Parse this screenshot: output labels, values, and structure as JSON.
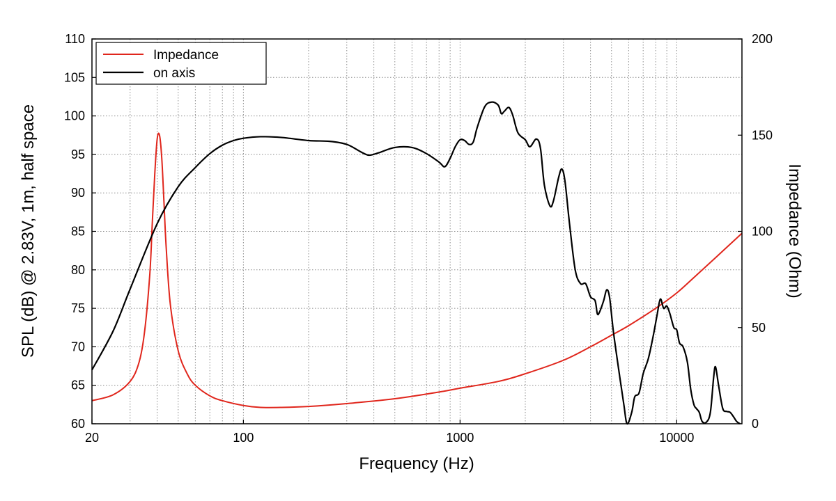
{
  "chart_data": {
    "type": "line",
    "xscale": "log",
    "xlim": [
      20,
      20000
    ],
    "xlabel": "Frequency (Hz)",
    "x_ticks": [
      20,
      100,
      1000,
      10000
    ],
    "x_tick_labels": [
      "20",
      "100",
      "1000",
      "10000"
    ],
    "ylabel_left": "SPL (dB) @ 2.83V, 1m, half space",
    "ylim_left": [
      60,
      110
    ],
    "y_ticks_left": [
      60,
      65,
      70,
      75,
      80,
      85,
      90,
      95,
      100,
      105,
      110
    ],
    "ylabel_right": "Impedance (Ohm)",
    "ylim_right": [
      0,
      200
    ],
    "y_ticks_right": [
      0,
      50,
      100,
      150,
      200
    ],
    "grid": true,
    "legend_position": "top-left",
    "colors": {
      "impedance": "#e0261c",
      "on_axis": "#000000"
    },
    "series": [
      {
        "name": "Impedance",
        "axis": "right",
        "color": "#e0261c",
        "points": [
          [
            20,
            12
          ],
          [
            25,
            15
          ],
          [
            30,
            22
          ],
          [
            33,
            32
          ],
          [
            35,
            48
          ],
          [
            37,
            78
          ],
          [
            38,
            105
          ],
          [
            39,
            130
          ],
          [
            40,
            148
          ],
          [
            41,
            150
          ],
          [
            42,
            138
          ],
          [
            43,
            115
          ],
          [
            44,
            92
          ],
          [
            46,
            62
          ],
          [
            50,
            38
          ],
          [
            55,
            26
          ],
          [
            60,
            20
          ],
          [
            70,
            14.5
          ],
          [
            80,
            12
          ],
          [
            100,
            9.5
          ],
          [
            120,
            8.5
          ],
          [
            150,
            8.5
          ],
          [
            200,
            9
          ],
          [
            300,
            10.5
          ],
          [
            500,
            13
          ],
          [
            800,
            16.5
          ],
          [
            1000,
            18.5
          ],
          [
            1500,
            22
          ],
          [
            2000,
            26
          ],
          [
            3000,
            33
          ],
          [
            4000,
            40
          ],
          [
            5000,
            46
          ],
          [
            6000,
            51
          ],
          [
            8000,
            60
          ],
          [
            10000,
            68
          ],
          [
            12000,
            76
          ],
          [
            15000,
            86
          ],
          [
            20000,
            99
          ]
        ]
      },
      {
        "name": "on axis",
        "axis": "left",
        "color": "#000000",
        "points": [
          [
            20,
            67
          ],
          [
            25,
            72
          ],
          [
            30,
            77.5
          ],
          [
            40,
            86
          ],
          [
            50,
            90.8
          ],
          [
            60,
            93.3
          ],
          [
            70,
            95.1
          ],
          [
            80,
            96.2
          ],
          [
            90,
            96.8
          ],
          [
            100,
            97.1
          ],
          [
            120,
            97.3
          ],
          [
            150,
            97.2
          ],
          [
            200,
            96.8
          ],
          [
            250,
            96.7
          ],
          [
            300,
            96.3
          ],
          [
            350,
            95.3
          ],
          [
            380,
            94.9
          ],
          [
            420,
            95.2
          ],
          [
            500,
            95.9
          ],
          [
            600,
            95.9
          ],
          [
            700,
            95.1
          ],
          [
            800,
            94
          ],
          [
            850,
            93.4
          ],
          [
            900,
            94.5
          ],
          [
            950,
            96
          ],
          [
            1000,
            96.9
          ],
          [
            1050,
            96.8
          ],
          [
            1100,
            96.3
          ],
          [
            1150,
            96.6
          ],
          [
            1200,
            98.5
          ],
          [
            1300,
            101.2
          ],
          [
            1400,
            101.8
          ],
          [
            1500,
            101.4
          ],
          [
            1550,
            100.3
          ],
          [
            1600,
            100.6
          ],
          [
            1680,
            101.1
          ],
          [
            1750,
            100.1
          ],
          [
            1850,
            97.8
          ],
          [
            2000,
            96.9
          ],
          [
            2100,
            96
          ],
          [
            2250,
            97
          ],
          [
            2350,
            95.8
          ],
          [
            2450,
            91
          ],
          [
            2600,
            88.3
          ],
          [
            2700,
            89
          ],
          [
            2850,
            92
          ],
          [
            2950,
            93.1
          ],
          [
            3050,
            91.5
          ],
          [
            3200,
            86
          ],
          [
            3400,
            80
          ],
          [
            3600,
            78.2
          ],
          [
            3800,
            78.2
          ],
          [
            4000,
            76.5
          ],
          [
            4200,
            76
          ],
          [
            4300,
            74.3
          ],
          [
            4400,
            74.5
          ],
          [
            4600,
            76
          ],
          [
            4750,
            77.4
          ],
          [
            4900,
            76.4
          ],
          [
            5100,
            72
          ],
          [
            5400,
            67
          ],
          [
            5700,
            62.5
          ],
          [
            5900,
            60
          ],
          [
            6200,
            61.5
          ],
          [
            6400,
            63.5
          ],
          [
            6700,
            64
          ],
          [
            7000,
            66.5
          ],
          [
            7400,
            68.5
          ],
          [
            7800,
            71.5
          ],
          [
            8100,
            74
          ],
          [
            8400,
            76.2
          ],
          [
            8700,
            75
          ],
          [
            9000,
            75.3
          ],
          [
            9300,
            74.3
          ],
          [
            9700,
            72.5
          ],
          [
            10000,
            72.2
          ],
          [
            10300,
            70.5
          ],
          [
            10700,
            70
          ],
          [
            11200,
            68
          ],
          [
            11600,
            64.5
          ],
          [
            12000,
            62.5
          ],
          [
            12300,
            62
          ],
          [
            12700,
            61.5
          ],
          [
            13100,
            60.3
          ],
          [
            13700,
            60.2
          ],
          [
            14300,
            61.5
          ],
          [
            14800,
            66
          ],
          [
            15100,
            67.4
          ],
          [
            15600,
            65
          ],
          [
            16300,
            62
          ],
          [
            17000,
            61.6
          ],
          [
            17600,
            61.5
          ],
          [
            18200,
            61
          ],
          [
            18900,
            60.3
          ],
          [
            19600,
            60
          ]
        ]
      }
    ]
  }
}
